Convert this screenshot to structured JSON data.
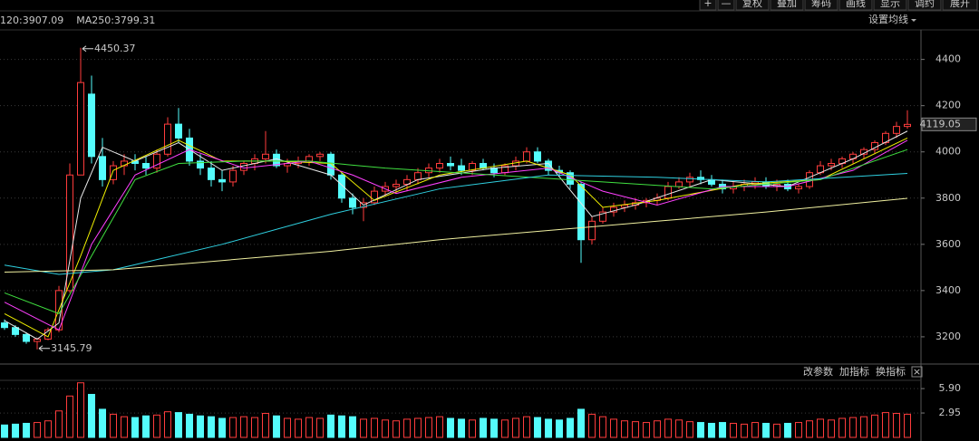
{
  "toolbar": [
    "+",
    "—",
    "复权",
    "叠加",
    "筹码",
    "画线",
    "显示",
    "调约",
    "展开"
  ],
  "ma_settings": "设置均线",
  "panel_buttons": [
    "改参数",
    "加指标",
    "换指标",
    "×"
  ],
  "chart_data": [
    {
      "type": "candlestick",
      "open": [
        3260,
        3240,
        3210,
        3180,
        3190,
        3230,
        3400,
        3900,
        4250,
        3980,
        3880,
        3940,
        3960,
        3950,
        3930,
        3990,
        4120,
        4060,
        3960,
        3930,
        3880,
        3870,
        3920,
        3950,
        3970,
        3990,
        3940,
        3950,
        3960,
        3980,
        3990,
        3900,
        3800,
        3760,
        3780,
        3830,
        3850,
        3860,
        3880,
        3910,
        3930,
        3950,
        3940,
        3920,
        3950,
        3930,
        3910,
        3940,
        3960,
        4000,
        3960,
        3920,
        3910,
        3860,
        3620,
        3700,
        3740,
        3760,
        3770,
        3780,
        3790,
        3800,
        3850,
        3870,
        3890,
        3880,
        3860,
        3840,
        3850,
        3860,
        3870,
        3850,
        3860,
        3840,
        3850,
        3910,
        3940,
        3950,
        3970,
        3990,
        4010,
        4040,
        4080,
        4110
      ],
      "high": [
        3275,
        3250,
        3220,
        3195,
        3240,
        3420,
        3950,
        4450.37,
        4330,
        4060,
        3960,
        3990,
        3990,
        3980,
        4010,
        4150,
        4190,
        4100,
        3990,
        3960,
        3920,
        3940,
        3960,
        3990,
        4090,
        4010,
        3970,
        3980,
        3990,
        4000,
        4000,
        3910,
        3820,
        3800,
        3850,
        3870,
        3880,
        3900,
        3930,
        3950,
        3970,
        3980,
        3970,
        3960,
        3970,
        3950,
        3950,
        3980,
        4020,
        4020,
        3970,
        3940,
        3920,
        3870,
        3720,
        3760,
        3780,
        3790,
        3800,
        3800,
        3820,
        3870,
        3890,
        3910,
        3920,
        3900,
        3880,
        3870,
        3880,
        3890,
        3890,
        3880,
        3880,
        3860,
        3920,
        3960,
        3970,
        3980,
        4000,
        4020,
        4050,
        4090,
        4130,
        4180
      ],
      "low": [
        3230,
        3200,
        3170,
        3145.79,
        3185,
        3220,
        3390,
        3900,
        3950,
        3850,
        3860,
        3900,
        3920,
        3900,
        3910,
        3980,
        4040,
        3940,
        3900,
        3850,
        3830,
        3850,
        3900,
        3920,
        3950,
        3930,
        3910,
        3930,
        3940,
        3960,
        3880,
        3780,
        3730,
        3700,
        3770,
        3810,
        3820,
        3830,
        3860,
        3890,
        3910,
        3920,
        3900,
        3900,
        3920,
        3890,
        3900,
        3920,
        3950,
        3950,
        3900,
        3890,
        3840,
        3520,
        3600,
        3690,
        3720,
        3740,
        3750,
        3760,
        3770,
        3790,
        3840,
        3850,
        3860,
        3850,
        3820,
        3820,
        3830,
        3840,
        3840,
        3830,
        3830,
        3820,
        3840,
        3900,
        3920,
        3930,
        3950,
        3970,
        3990,
        4030,
        4060,
        4100
      ],
      "close": [
        3240,
        3210,
        3180,
        3190,
        3230,
        3400,
        3900,
        4300,
        3980,
        3880,
        3940,
        3960,
        3950,
        3930,
        3990,
        4120,
        4060,
        3960,
        3930,
        3880,
        3870,
        3920,
        3950,
        3970,
        3990,
        3940,
        3950,
        3960,
        3980,
        3990,
        3900,
        3800,
        3760,
        3780,
        3830,
        3850,
        3860,
        3880,
        3910,
        3930,
        3950,
        3940,
        3920,
        3950,
        3930,
        3910,
        3940,
        3960,
        4000,
        3960,
        3920,
        3910,
        3860,
        3620,
        3700,
        3740,
        3760,
        3770,
        3780,
        3790,
        3800,
        3850,
        3870,
        3890,
        3880,
        3860,
        3840,
        3850,
        3860,
        3870,
        3850,
        3860,
        3840,
        3850,
        3910,
        3940,
        3950,
        3970,
        3990,
        4010,
        4040,
        4080,
        4110,
        4119.05
      ],
      "up_color": "#ff3c3c",
      "down_color": "#54fcfc",
      "ylim": [
        3090,
        4520
      ],
      "yticks": [
        3200,
        3400,
        3600,
        3800,
        4000,
        4200,
        4400
      ],
      "grid": true,
      "series": [
        {
          "color": "#e8e8e8",
          "x": [
            0,
            3,
            5,
            7,
            9,
            12,
            16,
            20,
            25,
            30,
            33,
            38,
            45,
            50,
            54,
            58,
            65,
            72,
            78,
            83
          ],
          "values": [
            3270,
            3190,
            3260,
            3800,
            4020,
            3960,
            4040,
            3920,
            3970,
            3900,
            3770,
            3880,
            3930,
            3950,
            3720,
            3770,
            3880,
            3850,
            3970,
            4090
          ]
        },
        {
          "color": "#f0f000",
          "x": [
            0,
            4,
            7,
            10,
            16,
            20,
            25,
            30,
            34,
            40,
            48,
            52,
            55,
            60,
            68,
            75,
            83
          ],
          "values": [
            3300,
            3200,
            3550,
            3920,
            4050,
            3960,
            3960,
            3950,
            3790,
            3900,
            3960,
            3900,
            3760,
            3790,
            3860,
            3880,
            4060
          ]
        },
        {
          "color": "#ff40ff",
          "x": [
            0,
            5,
            8,
            12,
            17,
            22,
            28,
            32,
            36,
            42,
            50,
            55,
            60,
            66,
            72,
            78,
            83
          ],
          "values": [
            3350,
            3230,
            3600,
            3900,
            4010,
            3930,
            3960,
            3900,
            3820,
            3890,
            3930,
            3830,
            3770,
            3850,
            3850,
            3920,
            4050
          ]
        },
        {
          "color": "#40e040",
          "x": [
            0,
            5,
            8,
            12,
            16,
            22,
            28,
            35,
            45,
            55,
            65,
            75,
            83
          ],
          "values": [
            3390,
            3300,
            3550,
            3880,
            3950,
            3960,
            3960,
            3930,
            3900,
            3870,
            3840,
            3880,
            4010
          ]
        },
        {
          "name": "120:3907.09",
          "color": "#2fd0e0",
          "x": [
            0,
            5,
            10,
            20,
            30,
            40,
            50,
            60,
            70,
            83
          ],
          "values": [
            3510,
            3470,
            3490,
            3600,
            3730,
            3840,
            3900,
            3890,
            3870,
            3907.09
          ]
        },
        {
          "name": "MA250:3799.31",
          "color": "#f0f0a0",
          "x": [
            0,
            10,
            20,
            30,
            40,
            50,
            60,
            70,
            83
          ],
          "values": [
            3480,
            3490,
            3530,
            3570,
            3620,
            3660,
            3700,
            3740,
            3799.31
          ]
        }
      ]
    },
    {
      "type": "volume",
      "values": [
        1.5,
        1.6,
        1.7,
        1.8,
        2.0,
        3.2,
        5.0,
        6.6,
        5.2,
        3.4,
        2.8,
        2.5,
        2.4,
        2.6,
        2.7,
        3.1,
        3.0,
        2.8,
        2.6,
        2.5,
        2.3,
        2.4,
        2.5,
        2.4,
        2.9,
        2.6,
        2.3,
        2.2,
        2.4,
        2.3,
        2.7,
        2.6,
        2.5,
        2.2,
        2.3,
        2.1,
        2.0,
        2.2,
        2.3,
        2.4,
        2.5,
        2.3,
        2.2,
        2.1,
        2.3,
        2.2,
        2.1,
        2.3,
        2.5,
        2.4,
        2.2,
        2.1,
        2.3,
        3.4,
        2.8,
        2.5,
        2.2,
        2.0,
        1.9,
        1.8,
        2.0,
        2.2,
        2.1,
        1.9,
        1.8,
        1.7,
        1.8,
        1.7,
        1.6,
        1.8,
        1.7,
        1.6,
        1.7,
        1.8,
        2.0,
        2.2,
        2.1,
        2.3,
        2.4,
        2.5,
        2.7,
        3.0,
        2.9,
        2.8
      ],
      "ylim": [
        0,
        6.9
      ],
      "yticks": [
        {
          "value": 2.95,
          "label": "2.95"
        },
        {
          "value": 5.9,
          "label": "5.90"
        }
      ]
    }
  ]
}
